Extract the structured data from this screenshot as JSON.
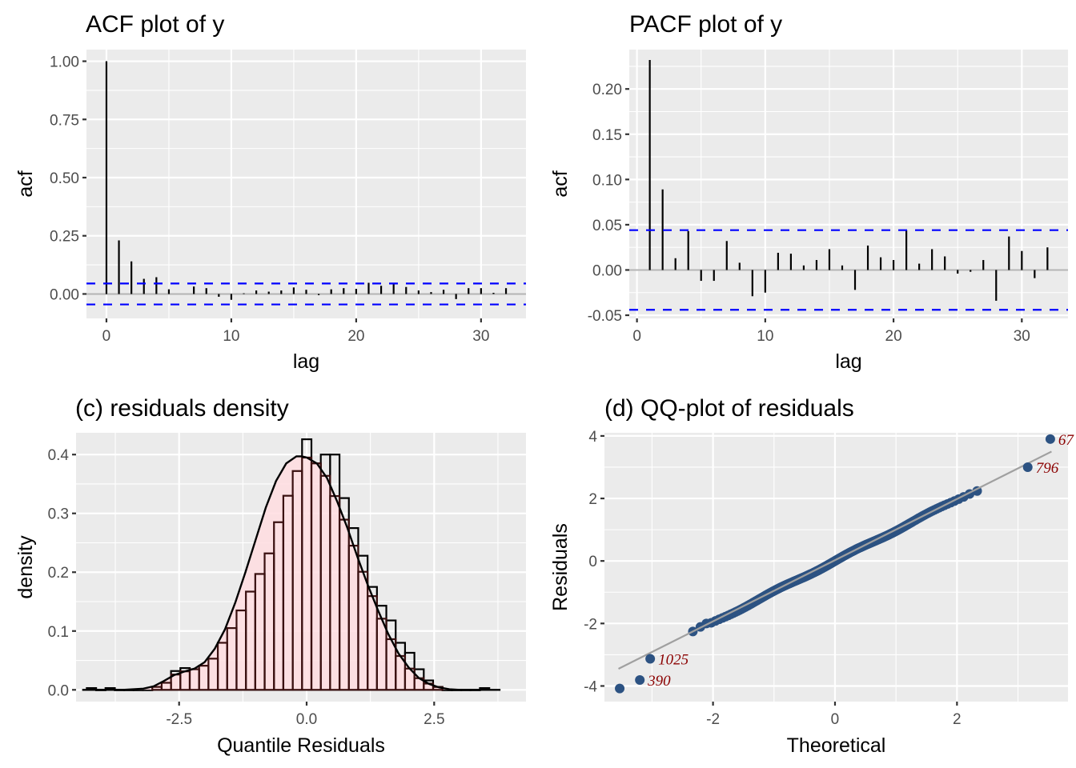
{
  "chart_data": [
    {
      "id": "acf",
      "type": "bar",
      "title": "ACF plot of y",
      "xlabel": "lag",
      "ylabel": "acf",
      "xlim": [
        -1.6,
        33.6
      ],
      "ylim": [
        -0.105,
        1.05
      ],
      "xticks": [
        0,
        10,
        20,
        30
      ],
      "xtick_labels": [
        "0",
        "10",
        "20",
        "30"
      ],
      "yticks": [
        0,
        0.25,
        0.5,
        0.75,
        1.0
      ],
      "ytick_labels": [
        "0.00",
        "0.25",
        "0.50",
        "0.75",
        "1.00"
      ],
      "grid": true,
      "confidence_bound": 0.045,
      "lags": [
        0,
        1,
        2,
        3,
        4,
        5,
        6,
        7,
        8,
        9,
        10,
        11,
        12,
        13,
        14,
        15,
        16,
        17,
        18,
        19,
        20,
        21,
        22,
        23,
        24,
        25,
        26,
        27,
        28,
        29,
        30,
        31,
        32
      ],
      "values": [
        1.0,
        0.23,
        0.14,
        0.065,
        0.072,
        0.02,
        0.0,
        0.032,
        0.025,
        -0.012,
        -0.025,
        0.003,
        0.015,
        0.01,
        0.015,
        0.028,
        0.018,
        -0.005,
        0.02,
        0.025,
        0.022,
        0.048,
        0.035,
        0.045,
        0.03,
        0.015,
        0.008,
        0.018,
        -0.022,
        0.025,
        0.025,
        0.005,
        0.025
      ]
    },
    {
      "id": "pacf",
      "type": "bar",
      "title": "PACF plot of y",
      "xlabel": "lag",
      "ylabel": "acf",
      "xlim": [
        -0.6,
        33.6
      ],
      "ylim": [
        -0.0535,
        0.2435
      ],
      "xticks": [
        0,
        10,
        20,
        30
      ],
      "xtick_labels": [
        "0",
        "10",
        "20",
        "30"
      ],
      "yticks": [
        -0.05,
        0,
        0.05,
        0.1,
        0.15,
        0.2
      ],
      "ytick_labels": [
        "-0.05",
        "0.00",
        "0.05",
        "0.10",
        "0.15",
        "0.20"
      ],
      "grid": true,
      "confidence_bound": 0.044,
      "lags": [
        1,
        2,
        3,
        4,
        5,
        6,
        7,
        8,
        9,
        10,
        11,
        12,
        13,
        14,
        15,
        16,
        17,
        18,
        19,
        20,
        21,
        22,
        23,
        24,
        25,
        26,
        27,
        28,
        29,
        30,
        31,
        32
      ],
      "values": [
        0.232,
        0.089,
        0.013,
        0.043,
        -0.012,
        -0.012,
        0.032,
        0.008,
        -0.029,
        -0.025,
        0.019,
        0.018,
        0.005,
        0.011,
        0.023,
        0.005,
        -0.022,
        0.027,
        0.014,
        0.011,
        0.044,
        0.007,
        0.023,
        0.015,
        -0.004,
        -0.002,
        0.011,
        -0.034,
        0.037,
        0.021,
        -0.009,
        0.025
      ]
    },
    {
      "id": "density",
      "type": "bar",
      "title": "(c) residuals density",
      "xlabel": "Quantile Residuals",
      "ylabel": "density",
      "xlim": [
        -4.52,
        4.3
      ],
      "ylim": [
        -0.02,
        0.437
      ],
      "xticks": [
        -2.5,
        0,
        2.5
      ],
      "xtick_labels": [
        "-2.5",
        "0.0",
        "2.5"
      ],
      "yticks": [
        0,
        0.1,
        0.2,
        0.3,
        0.4
      ],
      "ytick_labels": [
        "0.0",
        "0.1",
        "0.2",
        "0.3",
        "0.4"
      ],
      "grid": true,
      "bin_start": -4.31,
      "bin_width": 0.1835,
      "histogram_values": [
        0.003,
        0.0,
        0.003,
        0.0,
        0.0,
        0.0,
        0.0,
        0.005,
        0.012,
        0.032,
        0.037,
        0.035,
        0.041,
        0.053,
        0.08,
        0.105,
        0.135,
        0.167,
        0.197,
        0.232,
        0.285,
        0.33,
        0.372,
        0.426,
        0.385,
        0.4,
        0.4,
        0.326,
        0.275,
        0.228,
        0.175,
        0.143,
        0.118,
        0.08,
        0.063,
        0.035,
        0.016,
        0.005,
        0.0,
        0.0,
        0.0,
        0.0,
        0.003
      ],
      "fill_color": "#ffdde1",
      "density_curve": {
        "x": [
          -4.4,
          -3.6,
          -3.2,
          -3.0,
          -2.8,
          -2.6,
          -2.4,
          -2.2,
          -2.0,
          -1.8,
          -1.6,
          -1.4,
          -1.2,
          -1.0,
          -0.8,
          -0.6,
          -0.4,
          -0.2,
          -0.1,
          0.0,
          0.2,
          0.4,
          0.6,
          0.8,
          1.0,
          1.2,
          1.4,
          1.6,
          1.8,
          2.0,
          2.2,
          2.4,
          2.6,
          2.8,
          3.0,
          3.3,
          3.8
        ],
        "y": [
          0.0,
          0.0,
          0.002,
          0.006,
          0.015,
          0.025,
          0.031,
          0.036,
          0.047,
          0.07,
          0.103,
          0.148,
          0.2,
          0.255,
          0.31,
          0.355,
          0.385,
          0.397,
          0.397,
          0.395,
          0.385,
          0.36,
          0.32,
          0.275,
          0.225,
          0.178,
          0.135,
          0.095,
          0.062,
          0.038,
          0.02,
          0.01,
          0.004,
          0.001,
          0.0,
          0.0,
          0.0
        ]
      }
    },
    {
      "id": "qq",
      "type": "scatter",
      "title": "(d) QQ-plot of residuals",
      "xlabel": "Theoretical",
      "ylabel": "Residuals",
      "xlim": [
        -3.78,
        3.82
      ],
      "ylim": [
        -4.5,
        4.1
      ],
      "xticks": [
        -2,
        0,
        2
      ],
      "xtick_labels": [
        "-2",
        "0",
        "2"
      ],
      "yticks": [
        -4,
        -2,
        0,
        2,
        4
      ],
      "ytick_labels": [
        "-4",
        "-2",
        "0",
        "2",
        "4"
      ],
      "grid": true,
      "point_color": "#2c5282",
      "line_color": "#a0a0a0",
      "reference_line": {
        "x": [
          -3.55,
          3.55
        ],
        "y": [
          -3.45,
          3.5
        ]
      },
      "outliers": [
        {
          "x": 3.53,
          "y": 3.9,
          "label": "67"
        },
        {
          "x": 3.16,
          "y": 3.0,
          "label": "796"
        },
        {
          "x": -3.03,
          "y": -3.13,
          "label": "1025"
        },
        {
          "x": -3.2,
          "y": -3.81,
          "label": "390"
        },
        {
          "x": -3.53,
          "y": -4.08,
          "label": ""
        }
      ],
      "annotation_color": "#8b0000"
    }
  ]
}
